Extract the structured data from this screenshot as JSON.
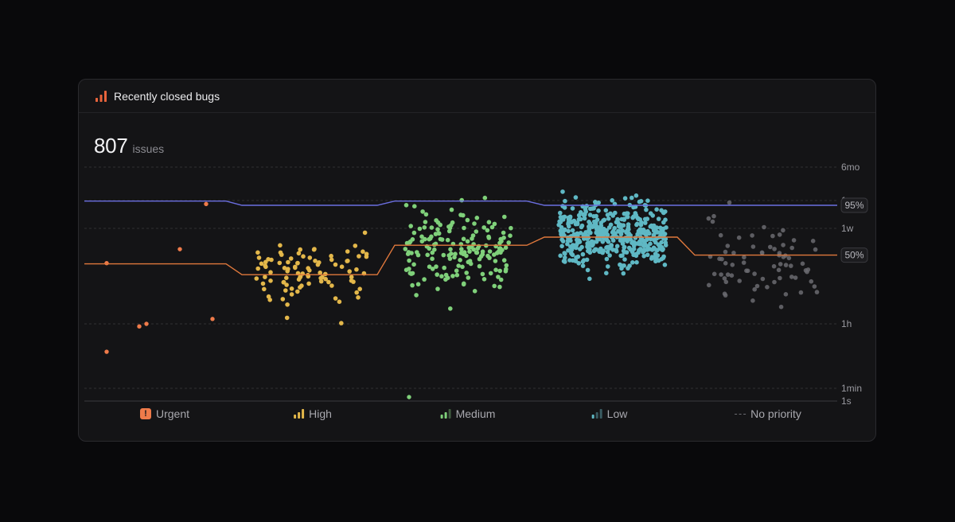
{
  "card": {
    "title": "Recently closed bugs",
    "icon": "bar-chart-icon",
    "icon_color": "#e8643c"
  },
  "summary": {
    "count": "807",
    "unit": "issues"
  },
  "chart_data": {
    "type": "scatter",
    "y_axis": {
      "scale": "log",
      "ticks": [
        "6mo",
        "1mo",
        "1w",
        "1h",
        "1min",
        "1s"
      ]
    },
    "percentile_lines": [
      {
        "label": "95%",
        "color": "#6b6ee0",
        "values_hours": [
          700,
          560,
          700,
          560,
          560
        ]
      },
      {
        "label": "50%",
        "color": "#e0783c",
        "values_hours": [
          25,
          14,
          68,
          105,
          40
        ]
      }
    ],
    "series": [
      {
        "name": "Urgent",
        "color": "#ef7b4a",
        "icon": "urgent-icon",
        "count_shown": 9
      },
      {
        "name": "High",
        "color": "#e3b74a",
        "icon": "signal-high-icon",
        "count_shown": 95
      },
      {
        "name": "Medium",
        "color": "#7fd07a",
        "icon": "signal-medium-icon",
        "count_shown": 170
      },
      {
        "name": "Low",
        "color": "#5fb8c4",
        "icon": "signal-low-icon",
        "count_shown": 460
      },
      {
        "name": "No priority",
        "color": "#6a6a70",
        "icon": "dashes-icon",
        "count_shown": 73
      }
    ],
    "urgent_points_hours": [
      600,
      55,
      26,
      1,
      1.3,
      0.85,
      0.17
    ]
  }
}
